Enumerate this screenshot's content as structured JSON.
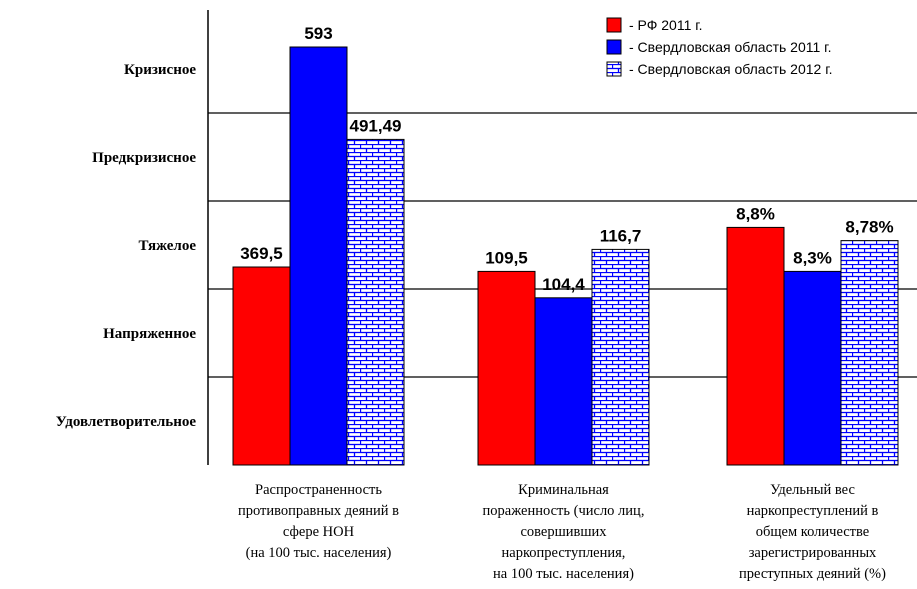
{
  "chart_data": {
    "type": "bar",
    "y_levels": [
      "Кризисное",
      "Предкризисное",
      "Тяжелое",
      "Напряженное",
      "Удовлетворительное"
    ],
    "categories": [
      [
        "Распространенность",
        "противоправных деяний в",
        "сфере НОН",
        "(на 100 тыс. населения)"
      ],
      [
        "Криминальная",
        "пораженность (число лиц,",
        "совершивших",
        "наркопреступления,",
        "на 100 тыс. населения)"
      ],
      [
        "Удельный вес",
        "наркопреступлений  в",
        "общем количестве",
        "зарегистрированных",
        "преступных  деяний (%)"
      ]
    ],
    "series": [
      {
        "name": "- РФ 2011 г.",
        "color": "#ff0000",
        "pattern": "solid",
        "values": [
          369.5,
          109.5,
          8.8
        ],
        "labels": [
          "369,5",
          "109,5",
          "8,8%"
        ],
        "level_values": [
          2.25,
          2.2,
          2.7
        ]
      },
      {
        "name": "- Свердловская область 2011 г.",
        "color": "#0000ff",
        "pattern": "solid",
        "values": [
          593,
          104.4,
          8.3
        ],
        "labels": [
          "593",
          "104,4",
          "8,3%"
        ],
        "level_values": [
          4.75,
          1.9,
          2.2
        ]
      },
      {
        "name": "- Свердловская область 2012 г.",
        "color": "#0000ff",
        "pattern": "brick",
        "values": [
          491.49,
          116.7,
          8.78
        ],
        "labels": [
          "491,49",
          "116,7",
          "8,78%"
        ],
        "level_values": [
          3.7,
          2.45,
          2.55
        ]
      }
    ],
    "grid": true,
    "legend": "top-right"
  }
}
